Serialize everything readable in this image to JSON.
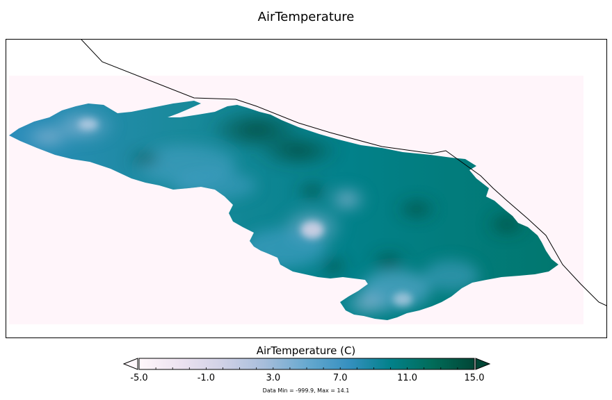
{
  "title": "AirTemperature",
  "colorbar": {
    "label": "AirTemperature (C)",
    "ticks": [
      "-5.0",
      "-1.0",
      "3.0",
      "7.0",
      "11.0",
      "15.0"
    ],
    "min": -5.0,
    "max": 15.0,
    "colors": [
      "#fff7fb",
      "#ece2f0",
      "#d0d1e6",
      "#a6bddb",
      "#67a9cf",
      "#3690c0",
      "#02818a",
      "#016c59",
      "#014636"
    ],
    "under_color": "#fff7fb",
    "over_color": "#014636"
  },
  "stats": "Data Min = -999.9, Max = 14.1",
  "colors": {
    "background_fill": "#fff5fa",
    "coastline": "#000000"
  }
}
